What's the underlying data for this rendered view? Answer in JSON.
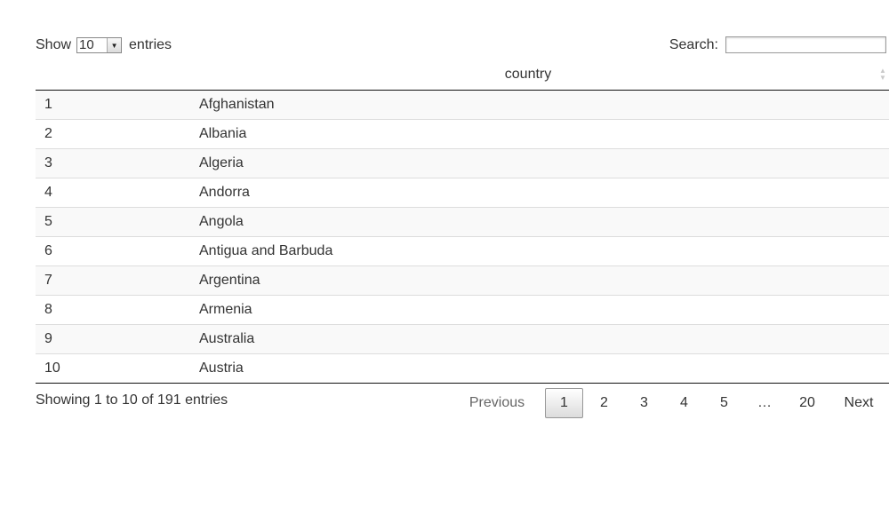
{
  "length_control": {
    "show_label": "Show",
    "selected_value": "10",
    "entries_label": "entries"
  },
  "search": {
    "label": "Search:",
    "value": "",
    "placeholder": ""
  },
  "table": {
    "columns": [
      "",
      "country"
    ],
    "rows": [
      {
        "index": "1",
        "country": "Afghanistan"
      },
      {
        "index": "2",
        "country": "Albania"
      },
      {
        "index": "3",
        "country": "Algeria"
      },
      {
        "index": "4",
        "country": "Andorra"
      },
      {
        "index": "5",
        "country": "Angola"
      },
      {
        "index": "6",
        "country": "Antigua and Barbuda"
      },
      {
        "index": "7",
        "country": "Argentina"
      },
      {
        "index": "8",
        "country": "Armenia"
      },
      {
        "index": "9",
        "country": "Australia"
      },
      {
        "index": "10",
        "country": "Austria"
      }
    ]
  },
  "info": "Showing 1 to 10 of 191 entries",
  "pagination": {
    "previous": "Previous",
    "pages": [
      "1",
      "2",
      "3",
      "4",
      "5"
    ],
    "current_page": "1",
    "ellipsis": "…",
    "last_page": "20",
    "next": "Next"
  },
  "icons": {
    "sort": "sort-both-icon",
    "select_arrow": "chevron-down-icon"
  }
}
